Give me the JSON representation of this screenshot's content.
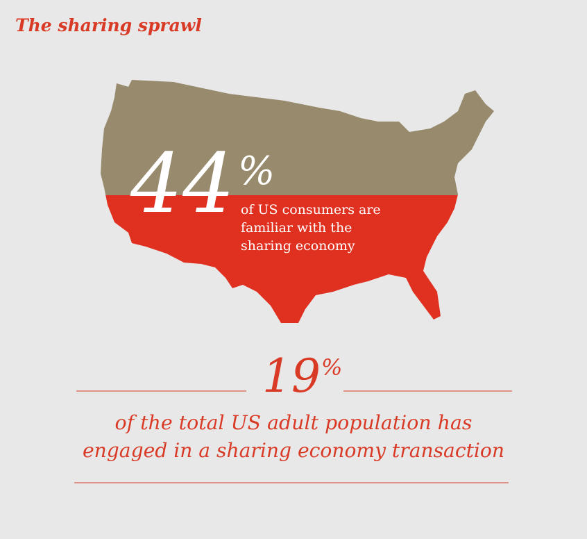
{
  "header": {
    "title": "The sharing sprawl"
  },
  "stat_primary": {
    "number": "44",
    "unit": "%",
    "description": [
      "of US consumers are",
      "familiar with the",
      "sharing economy"
    ]
  },
  "stat_secondary": {
    "number": "19",
    "unit": "%",
    "description": [
      "of the total US adult population has",
      "engaged in a sharing economy transaction"
    ]
  }
}
